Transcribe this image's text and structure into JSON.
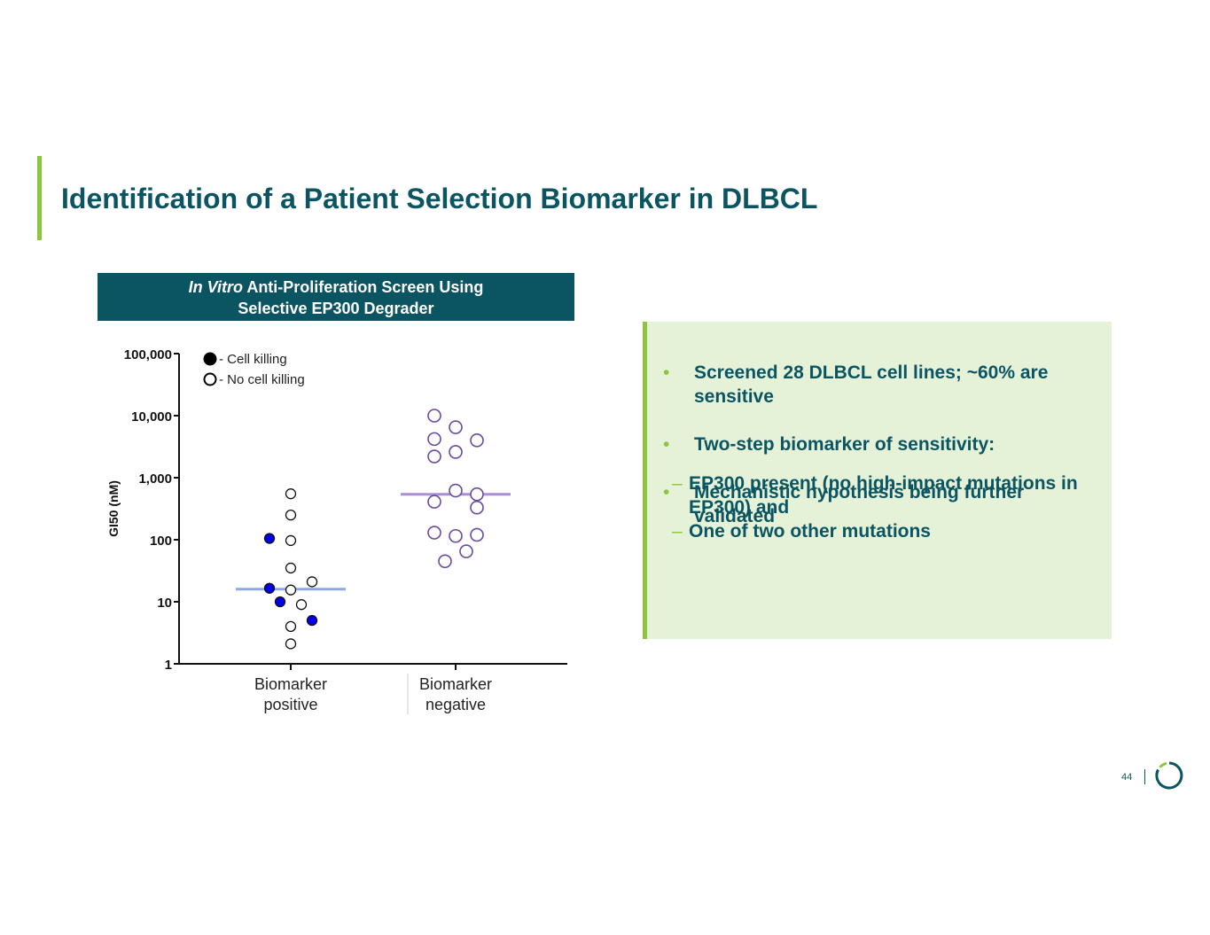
{
  "slide": {
    "title": "Identification of a Patient Selection Biomarker in DLBCL",
    "page_number": "44"
  },
  "chart_header": {
    "italic": "In Vitro",
    "line1_rest": " Anti-Proliferation Screen Using",
    "line2": "Selective EP300 Degrader"
  },
  "colors": {
    "title": "#0b5563",
    "accent": "#8cc63f",
    "panel_bg": "#e5f2d8",
    "killing_fill": "#0000ee",
    "positive_median": "#8fa8e0",
    "negative_median": "#a98fd6",
    "negative_marker": "#6a4a9e"
  },
  "chart_data": {
    "type": "scatter",
    "ylabel": "GI50 (nM)",
    "yscale": "log",
    "ylim": [
      1,
      100000
    ],
    "yticks": [
      {
        "value": 1,
        "label": "1"
      },
      {
        "value": 10,
        "label": "10"
      },
      {
        "value": 100,
        "label": "100"
      },
      {
        "value": 1000,
        "label": "1,000"
      },
      {
        "value": 10000,
        "label": "10,000"
      },
      {
        "value": 100000,
        "label": "100,000"
      }
    ],
    "categories": [
      {
        "lines": [
          "Biomarker",
          "positive"
        ]
      },
      {
        "lines": [
          "Biomarker",
          "negative"
        ]
      }
    ],
    "legend": [
      {
        "marker": "filled",
        "label": "- Cell killing"
      },
      {
        "marker": "open",
        "label": "- No cell killing"
      }
    ],
    "groups": [
      {
        "category": 0,
        "median": 16,
        "points": [
          {
            "y": 550,
            "offset": 0,
            "killing": false
          },
          {
            "y": 250,
            "offset": 0,
            "killing": false
          },
          {
            "y": 105,
            "offset": -1,
            "killing": true
          },
          {
            "y": 97,
            "offset": 0,
            "killing": false
          },
          {
            "y": 35,
            "offset": 0,
            "killing": false
          },
          {
            "y": 21,
            "offset": 1,
            "killing": false
          },
          {
            "y": 16.5,
            "offset": -1,
            "killing": true
          },
          {
            "y": 15.5,
            "offset": 0,
            "killing": false
          },
          {
            "y": 10,
            "offset": -0.5,
            "killing": true
          },
          {
            "y": 9,
            "offset": 0.5,
            "killing": false
          },
          {
            "y": 5,
            "offset": 1,
            "killing": true
          },
          {
            "y": 4,
            "offset": 0,
            "killing": false
          },
          {
            "y": 2.1,
            "offset": 0,
            "killing": false
          }
        ]
      },
      {
        "category": 1,
        "median": 540,
        "points": [
          {
            "y": 10000,
            "offset": -1,
            "killing": false
          },
          {
            "y": 6500,
            "offset": 0,
            "killing": false
          },
          {
            "y": 4200,
            "offset": -1,
            "killing": false
          },
          {
            "y": 4000,
            "offset": 1,
            "killing": false
          },
          {
            "y": 2600,
            "offset": 0,
            "killing": false
          },
          {
            "y": 2200,
            "offset": -1,
            "killing": false
          },
          {
            "y": 620,
            "offset": 0,
            "killing": false
          },
          {
            "y": 540,
            "offset": 1,
            "killing": false
          },
          {
            "y": 410,
            "offset": -1,
            "killing": false
          },
          {
            "y": 330,
            "offset": 1,
            "killing": false
          },
          {
            "y": 130,
            "offset": -1,
            "killing": false
          },
          {
            "y": 115,
            "offset": 0,
            "killing": false
          },
          {
            "y": 120,
            "offset": 1,
            "killing": false
          },
          {
            "y": 65,
            "offset": 0.5,
            "killing": false
          },
          {
            "y": 45,
            "offset": -0.5,
            "killing": false
          }
        ]
      }
    ]
  },
  "panel": {
    "bullet1": "Screened 28 DLBCL cell lines; ~60% are sensitive",
    "bullet2": "Two-step biomarker of sensitivity:",
    "bullet2_sub1": "EP300 present (no high-impact mutations in EP300) and",
    "bullet2_sub2": "One of two other mutations",
    "bullet3": "Mechanistic hypothesis being further validated",
    "bullet_char": "•",
    "dash_char": "–"
  }
}
